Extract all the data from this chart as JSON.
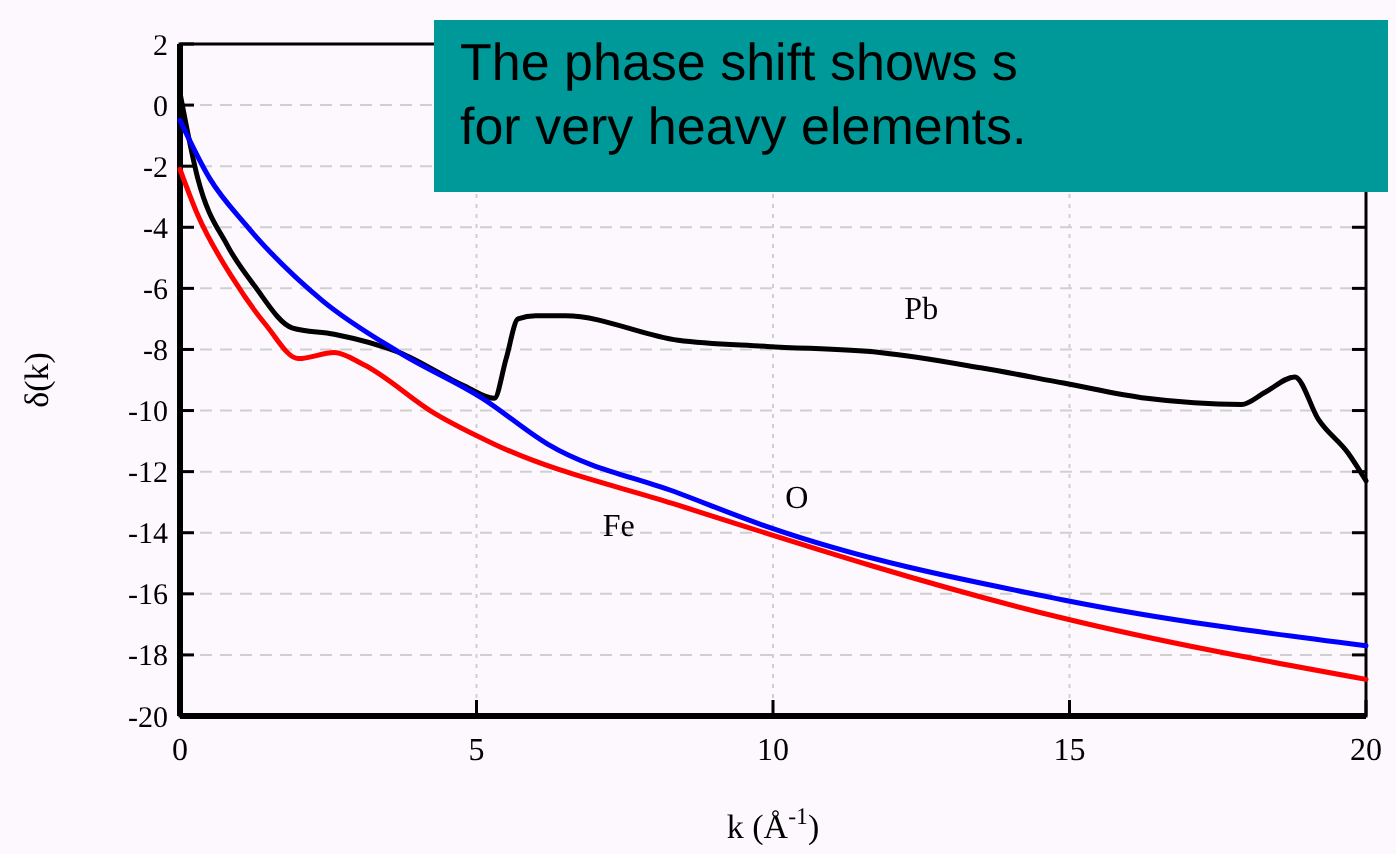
{
  "chart_data": {
    "type": "line",
    "xlabel": "k (Å$^{-1}$)",
    "ylabel": "δ(k)",
    "xlim": [
      0,
      20
    ],
    "xticks": [
      0,
      5,
      10,
      15,
      20
    ],
    "ylim": [
      -20,
      2
    ],
    "yticks": [
      -20,
      -18,
      -16,
      -14,
      -12,
      -10,
      -8,
      -6,
      -4,
      -2,
      0,
      2
    ],
    "grid": true,
    "annotations": [
      "The phase shift shows s",
      "for very heavy elements."
    ],
    "series": [
      {
        "name": "Pb",
        "color": "#000000",
        "x": [
          0,
          0.3,
          0.8,
          1.25,
          1.9,
          2.6,
          3.7,
          4.8,
          5.3,
          5.5,
          5.7,
          6.0,
          6.5,
          8.4,
          9.9,
          11.8,
          13.5,
          14.9,
          16.3,
          17.9,
          18.3,
          18.8,
          19.2,
          19.7,
          20
        ],
        "values": [
          0.4,
          -2.4,
          -4.6,
          -5.9,
          -7.3,
          -7.5,
          -8.1,
          -9.2,
          -9.6,
          -8.3,
          -7.0,
          -6.9,
          -6.9,
          -7.7,
          -7.9,
          -8.1,
          -8.6,
          -9.1,
          -9.6,
          -9.8,
          -9.4,
          -8.9,
          -10.3,
          -11.4,
          -12.3
        ]
      },
      {
        "name": "O",
        "color": "#0000ff",
        "x": [
          0,
          0.5,
          1.1,
          2.4,
          3.7,
          5.1,
          6.2,
          8.4,
          9.9,
          14.9,
          20
        ],
        "values": [
          -0.5,
          -2.4,
          -3.9,
          -6.4,
          -8.1,
          -9.6,
          -11.1,
          -12.7,
          -13.8,
          -16.2,
          -17.7
        ]
      },
      {
        "name": "Fe",
        "color": "#ff0000",
        "x": [
          0,
          0.3,
          0.9,
          1.45,
          2.0,
          2.6,
          3.1,
          4.3,
          5.3,
          8.4,
          14.9,
          20
        ],
        "values": [
          -2.1,
          -3.6,
          -5.7,
          -7.2,
          -8.3,
          -8.1,
          -8.5,
          -10.1,
          -11.1,
          -13.1,
          -16.8,
          -18.8
        ]
      }
    ]
  }
}
